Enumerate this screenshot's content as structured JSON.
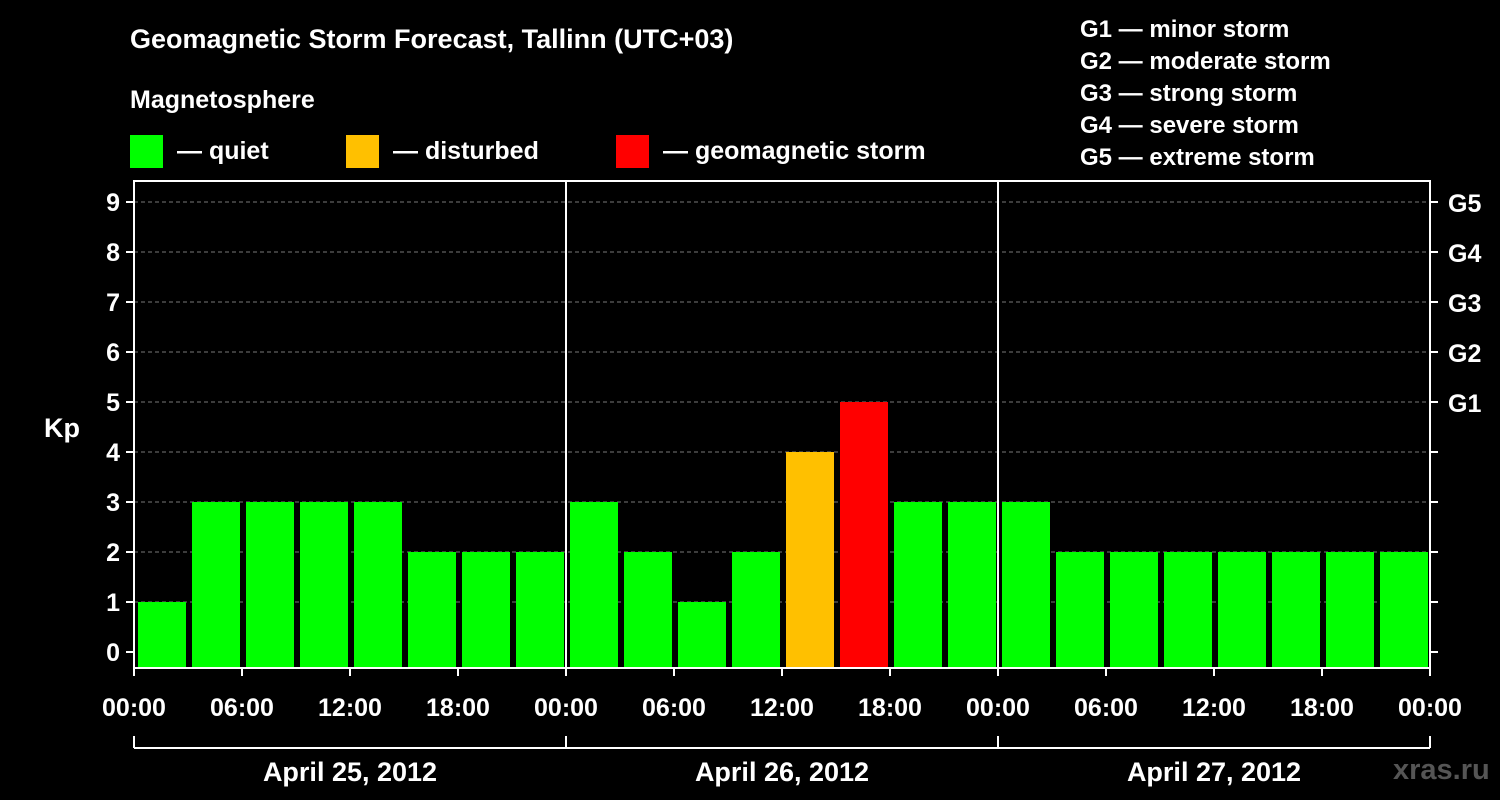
{
  "title": "Geomagnetic Storm Forecast, Tallinn (UTC+03)",
  "magnetosphere_title": "Magnetosphere",
  "legend": [
    {
      "label": "— quiet",
      "color": "#00ff00"
    },
    {
      "label": "— disturbed",
      "color": "#ffc000"
    },
    {
      "label": "— geomagnetic storm",
      "color": "#ff0000"
    }
  ],
  "g_legend": [
    "G1 — minor storm",
    "G2 — moderate storm",
    "G3 — strong storm",
    "G4 — severe storm",
    "G5 — extreme storm"
  ],
  "watermark": "xras.ru",
  "chart_data": {
    "type": "bar",
    "ylabel": "Kp",
    "ylim": [
      0,
      9
    ],
    "yticks": [
      "0",
      "1",
      "2",
      "3",
      "4",
      "5",
      "6",
      "7",
      "8",
      "9"
    ],
    "right_axis": [
      {
        "kp": 5,
        "label": "G1"
      },
      {
        "kp": 6,
        "label": "G2"
      },
      {
        "kp": 7,
        "label": "G3"
      },
      {
        "kp": 8,
        "label": "G4"
      },
      {
        "kp": 9,
        "label": "G5"
      }
    ],
    "grid": true,
    "x_tick_labels": [
      "00:00",
      "06:00",
      "12:00",
      "18:00",
      "00:00",
      "06:00",
      "12:00",
      "18:00",
      "00:00",
      "06:00",
      "12:00",
      "18:00",
      "00:00"
    ],
    "days": [
      "April 25, 2012",
      "April 26, 2012",
      "April 27, 2012"
    ],
    "interval_hours": 3,
    "values": [
      1,
      3,
      3,
      3,
      3,
      2,
      2,
      2,
      3,
      2,
      1,
      2,
      4,
      5,
      3,
      3,
      3,
      2,
      2,
      2,
      2,
      2,
      2,
      2
    ],
    "colors": {
      "quiet": "#00ff00",
      "disturbed": "#ffc000",
      "storm": "#ff0000"
    }
  }
}
